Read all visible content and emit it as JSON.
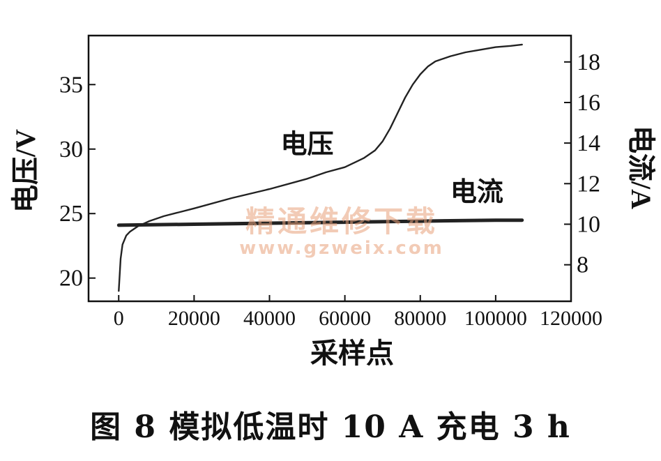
{
  "caption": "图 8   模拟低温时 10 A 充电 3 h",
  "watermark": {
    "line1": "精通维修下载",
    "line2": "www.gzweix.com"
  },
  "chart_data": {
    "type": "line",
    "xlabel": "采样点",
    "ylabel_left": "电压/V",
    "ylabel_right": "电流/A",
    "xlim": [
      -8000,
      120000
    ],
    "ylim_left": [
      18.2,
      38.8
    ],
    "ylim_right": [
      6.2,
      19.3
    ],
    "x_ticks": [
      0,
      20000,
      40000,
      60000,
      80000,
      100000,
      120000
    ],
    "y_left_ticks": [
      20,
      25,
      30,
      35
    ],
    "y_right_ticks": [
      8,
      10,
      12,
      14,
      16,
      18
    ],
    "grid": false,
    "series": [
      {
        "name": "电压",
        "axis": "left",
        "x": [
          0,
          500,
          1000,
          2000,
          3000,
          5000,
          8000,
          12000,
          20000,
          30000,
          40000,
          50000,
          55000,
          60000,
          65000,
          68000,
          70000,
          72000,
          74000,
          76000,
          78000,
          80000,
          82000,
          84000,
          88000,
          92000,
          96000,
          100000,
          104000,
          107000
        ],
        "y": [
          19.0,
          21.5,
          22.6,
          23.3,
          23.6,
          24.0,
          24.4,
          24.8,
          25.4,
          26.2,
          26.9,
          27.7,
          28.2,
          28.6,
          29.3,
          29.9,
          30.6,
          31.6,
          32.8,
          34.0,
          35.0,
          35.8,
          36.4,
          36.8,
          37.2,
          37.5,
          37.7,
          37.9,
          38.0,
          38.1
        ]
      },
      {
        "name": "电流",
        "axis": "right",
        "x": [
          0,
          20000,
          40000,
          60000,
          80000,
          100000,
          107000
        ],
        "y": [
          9.95,
          10.0,
          10.05,
          10.1,
          10.15,
          10.2,
          10.2
        ]
      }
    ],
    "annotations": [
      {
        "text": "电压",
        "x": 50000,
        "y": 30.4,
        "axis": "left"
      },
      {
        "text": "电流",
        "x": 95000,
        "y": 11.6,
        "axis": "right"
      }
    ]
  }
}
